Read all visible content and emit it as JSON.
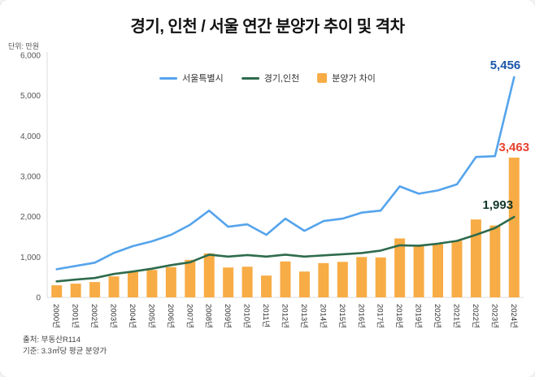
{
  "page": {
    "title": "경기, 인천 / 서울 연간 분양가 추이 및 격차",
    "unit_label": "단위: 만원",
    "footer": {
      "source": "출처: 부동산R114",
      "basis": "기준: 3.3㎡당 평균 분양가"
    }
  },
  "chart_data": {
    "type": "combo-line-bar",
    "title": "경기, 인천 / 서울 연간 분양가 추이 및 격차",
    "unit": "만원",
    "xlabel": "",
    "ylabel": "",
    "ylim": [
      0,
      6000
    ],
    "ytick_step": 1000,
    "grid": false,
    "legend_position": "top-center",
    "categories": [
      "2000년",
      "2001년",
      "2002년",
      "2003년",
      "2004년",
      "2005년",
      "2006년",
      "2007년",
      "2008년",
      "2009년",
      "2010년",
      "2011년",
      "2012년",
      "2013년",
      "2014년",
      "2015년",
      "2016년",
      "2017년",
      "2018년",
      "2019년",
      "2020년",
      "2021년",
      "2022년",
      "2023년",
      "2024년"
    ],
    "series": [
      {
        "name": "서울특별시",
        "type": "line",
        "color": "#55a4ec",
        "values": [
          697,
          780,
          860,
          1100,
          1270,
          1390,
          1550,
          1800,
          2150,
          1750,
          1810,
          1550,
          1950,
          1650,
          1890,
          1950,
          2100,
          2150,
          2750,
          2570,
          2650,
          2800,
          3480,
          3500,
          5456
        ]
      },
      {
        "name": "경기,인천",
        "type": "line",
        "color": "#2e6b4d",
        "values": [
          397,
          440,
          480,
          580,
          640,
          710,
          800,
          870,
          1060,
          1010,
          1050,
          1010,
          1060,
          1010,
          1040,
          1070,
          1100,
          1160,
          1290,
          1280,
          1330,
          1400,
          1550,
          1720,
          1993
        ]
      },
      {
        "name": "분양가 차이",
        "type": "bar",
        "color": "#f8ac45",
        "values": [
          300,
          340,
          380,
          520,
          630,
          680,
          750,
          930,
          1090,
          740,
          760,
          540,
          890,
          640,
          850,
          880,
          1000,
          990,
          1460,
          1290,
          1320,
          1400,
          1930,
          1780,
          3463
        ]
      }
    ],
    "annotations": [
      {
        "series_index": 0,
        "category_index": 24,
        "text": "5,456",
        "color": "#1b57a8"
      },
      {
        "series_index": 2,
        "category_index": 24,
        "text": "3,463",
        "color": "#e8432e"
      },
      {
        "series_index": 1,
        "category_index": 24,
        "text": "1,993",
        "color": "#12372a"
      }
    ]
  }
}
